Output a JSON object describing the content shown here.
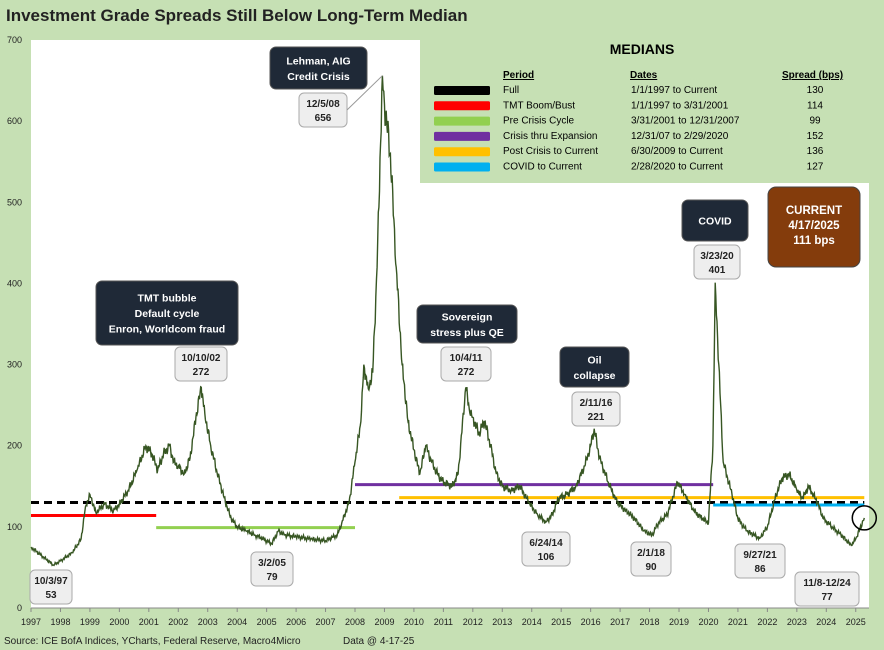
{
  "title": "Investment Grade Spreads Still Below Long-Term Median",
  "footer": {
    "source": "Source: ICE BofA Indices, YCharts, Federal Reserve, Macro4Micro",
    "date": "Data @ 4-17-25"
  },
  "colors": {
    "background": "#c6e0b4",
    "plot": "#ffffff",
    "series": "#375623",
    "callout_dark": "#1f2937",
    "callout_light": "#eeeeee",
    "current_box": "#843c0c"
  },
  "chart_data": {
    "type": "line",
    "title": "Investment Grade Spreads Still Below Long-Term Median",
    "xlim": [
      1997,
      2025.45
    ],
    "ylim": [
      0,
      700
    ],
    "x_ticks": [
      "1997",
      "1998",
      "1999",
      "2000",
      "2001",
      "2002",
      "2003",
      "2004",
      "2005",
      "2006",
      "2007",
      "2008",
      "2009",
      "2010",
      "2011",
      "2012",
      "2013",
      "2014",
      "2015",
      "2016",
      "2017",
      "2018",
      "2019",
      "2020",
      "2021",
      "2022",
      "2023",
      "2024",
      "2025"
    ],
    "y_ticks": [
      "0",
      "100",
      "200",
      "300",
      "400",
      "500",
      "600",
      "700"
    ],
    "grid": false,
    "series": [
      {
        "color": "#375623",
        "points": [
          [
            1997.0,
            75
          ],
          [
            1997.76,
            53
          ],
          [
            1998.0,
            58
          ],
          [
            1998.4,
            68
          ],
          [
            1998.7,
            85
          ],
          [
            1998.85,
            125
          ],
          [
            1999.0,
            140
          ],
          [
            1999.2,
            118
          ],
          [
            1999.5,
            128
          ],
          [
            1999.8,
            120
          ],
          [
            2000.0,
            128
          ],
          [
            2000.3,
            145
          ],
          [
            2000.6,
            170
          ],
          [
            2000.9,
            200
          ],
          [
            2001.1,
            190
          ],
          [
            2001.3,
            170
          ],
          [
            2001.5,
            190
          ],
          [
            2001.7,
            200
          ],
          [
            2001.85,
            180
          ],
          [
            2002.0,
            175
          ],
          [
            2002.2,
            165
          ],
          [
            2002.4,
            185
          ],
          [
            2002.6,
            235
          ],
          [
            2002.78,
            272
          ],
          [
            2002.9,
            240
          ],
          [
            2003.1,
            200
          ],
          [
            2003.3,
            170
          ],
          [
            2003.6,
            130
          ],
          [
            2003.8,
            110
          ],
          [
            2004.0,
            100
          ],
          [
            2004.3,
            95
          ],
          [
            2004.6,
            90
          ],
          [
            2004.9,
            85
          ],
          [
            2005.17,
            79
          ],
          [
            2005.4,
            95
          ],
          [
            2005.6,
            90
          ],
          [
            2006.0,
            88
          ],
          [
            2006.5,
            85
          ],
          [
            2007.0,
            83
          ],
          [
            2007.4,
            90
          ],
          [
            2007.55,
            105
          ],
          [
            2007.8,
            130
          ],
          [
            2008.0,
            180
          ],
          [
            2008.2,
            230
          ],
          [
            2008.3,
            300
          ],
          [
            2008.45,
            270
          ],
          [
            2008.6,
            290
          ],
          [
            2008.75,
            420
          ],
          [
            2008.93,
            656
          ],
          [
            2009.0,
            620
          ],
          [
            2009.2,
            560
          ],
          [
            2009.4,
            420
          ],
          [
            2009.6,
            300
          ],
          [
            2009.8,
            230
          ],
          [
            2010.0,
            195
          ],
          [
            2010.2,
            165
          ],
          [
            2010.4,
            200
          ],
          [
            2010.6,
            180
          ],
          [
            2010.8,
            165
          ],
          [
            2011.0,
            155
          ],
          [
            2011.3,
            150
          ],
          [
            2011.5,
            165
          ],
          [
            2011.76,
            272
          ],
          [
            2011.9,
            240
          ],
          [
            2012.0,
            235
          ],
          [
            2012.2,
            215
          ],
          [
            2012.4,
            230
          ],
          [
            2012.6,
            200
          ],
          [
            2012.8,
            165
          ],
          [
            2013.0,
            150
          ],
          [
            2013.3,
            145
          ],
          [
            2013.6,
            150
          ],
          [
            2013.9,
            130
          ],
          [
            2014.2,
            115
          ],
          [
            2014.48,
            106
          ],
          [
            2014.7,
            115
          ],
          [
            2014.9,
            135
          ],
          [
            2015.2,
            140
          ],
          [
            2015.5,
            150
          ],
          [
            2015.8,
            175
          ],
          [
            2016.0,
            200
          ],
          [
            2016.12,
            221
          ],
          [
            2016.3,
            185
          ],
          [
            2016.6,
            155
          ],
          [
            2016.9,
            130
          ],
          [
            2017.2,
            120
          ],
          [
            2017.5,
            110
          ],
          [
            2017.8,
            95
          ],
          [
            2018.09,
            90
          ],
          [
            2018.3,
            105
          ],
          [
            2018.6,
            115
          ],
          [
            2018.95,
            155
          ],
          [
            2019.2,
            140
          ],
          [
            2019.5,
            120
          ],
          [
            2019.8,
            110
          ],
          [
            2020.0,
            105
          ],
          [
            2020.15,
            200
          ],
          [
            2020.23,
            401
          ],
          [
            2020.35,
            300
          ],
          [
            2020.5,
            180
          ],
          [
            2020.8,
            140
          ],
          [
            2021.0,
            110
          ],
          [
            2021.3,
            95
          ],
          [
            2021.74,
            86
          ],
          [
            2022.0,
            100
          ],
          [
            2022.3,
            140
          ],
          [
            2022.5,
            160
          ],
          [
            2022.75,
            165
          ],
          [
            2023.0,
            145
          ],
          [
            2023.2,
            135
          ],
          [
            2023.4,
            150
          ],
          [
            2023.7,
            130
          ],
          [
            2023.9,
            110
          ],
          [
            2024.2,
            100
          ],
          [
            2024.5,
            90
          ],
          [
            2024.85,
            77
          ],
          [
            2025.0,
            85
          ],
          [
            2025.29,
            111
          ]
        ]
      }
    ],
    "median_lines": [
      {
        "color": "#000000",
        "dashed": true,
        "y": 130,
        "x0": 1997.0,
        "x1": 2025.29
      },
      {
        "color": "#ff0000",
        "y": 114,
        "x0": 1997.0,
        "x1": 2001.25
      },
      {
        "color": "#92d050",
        "y": 99,
        "x0": 2001.25,
        "x1": 2008.0
      },
      {
        "color": "#7030a0",
        "y": 152,
        "x0": 2008.0,
        "x1": 2020.16
      },
      {
        "color": "#ffc000",
        "y": 136,
        "x0": 2009.5,
        "x1": 2025.29
      },
      {
        "color": "#00b0f0",
        "y": 127,
        "x0": 2020.16,
        "x1": 2025.29
      }
    ],
    "point_labels": [
      {
        "date": "10/3/97",
        "value": "53",
        "x": 1997.76,
        "y": 53
      },
      {
        "date": "10/10/02",
        "value": "272",
        "x": 2002.78,
        "y": 272
      },
      {
        "date": "3/2/05",
        "value": "79",
        "x": 2005.17,
        "y": 79
      },
      {
        "date": "12/5/08",
        "value": "656",
        "x": 2008.93,
        "y": 656
      },
      {
        "date": "10/4/11",
        "value": "272",
        "x": 2011.76,
        "y": 272
      },
      {
        "date": "6/24/14",
        "value": "106",
        "x": 2014.48,
        "y": 106
      },
      {
        "date": "2/11/16",
        "value": "221",
        "x": 2016.12,
        "y": 221
      },
      {
        "date": "2/1/18",
        "value": "90",
        "x": 2018.09,
        "y": 90
      },
      {
        "date": "3/23/20",
        "value": "401",
        "x": 2020.23,
        "y": 401
      },
      {
        "date": "9/27/21",
        "value": "86",
        "x": 2021.74,
        "y": 86
      },
      {
        "date": "11/8-12/24",
        "value": "77",
        "x": 2024.85,
        "y": 77
      }
    ],
    "annotations": [
      {
        "lines": [
          "Lehman, AIG",
          "Credit Crisis"
        ]
      },
      {
        "lines": [
          "TMT bubble",
          "Default cycle",
          "Enron, Worldcom fraud"
        ]
      },
      {
        "lines": [
          "Sovereign",
          "stress plus QE"
        ]
      },
      {
        "lines": [
          "Oil",
          "collapse"
        ]
      },
      {
        "lines": [
          "COVID"
        ]
      }
    ],
    "current": {
      "lines": [
        "CURRENT",
        "4/17/2025",
        "111 bps"
      ],
      "x": 2025.29,
      "y": 111
    },
    "medians_table": {
      "title": "MEDIANS",
      "headers": [
        "Period",
        "Dates",
        "Spread (bps)"
      ],
      "rows": [
        {
          "period": "Full",
          "dates": "1/1/1997 to Current",
          "spread": "130",
          "color": "#000000"
        },
        {
          "period": "TMT Boom/Bust",
          "dates": "1/1/1997 to 3/31/2001",
          "spread": "114",
          "color": "#ff0000"
        },
        {
          "period": "Pre Crisis Cycle",
          "dates": "3/31/2001 to 12/31/2007",
          "spread": "99",
          "color": "#92d050"
        },
        {
          "period": "Crisis thru Expansion",
          "dates": "12/31/07 to 2/29/2020",
          "spread": "152",
          "color": "#7030a0"
        },
        {
          "period": "Post Crisis to Current",
          "dates": "6/30/2009 to Current",
          "spread": "136",
          "color": "#ffc000"
        },
        {
          "period": "COVID to Current",
          "dates": "2/28/2020 to Current",
          "spread": "127",
          "color": "#00b0f0"
        }
      ]
    }
  }
}
